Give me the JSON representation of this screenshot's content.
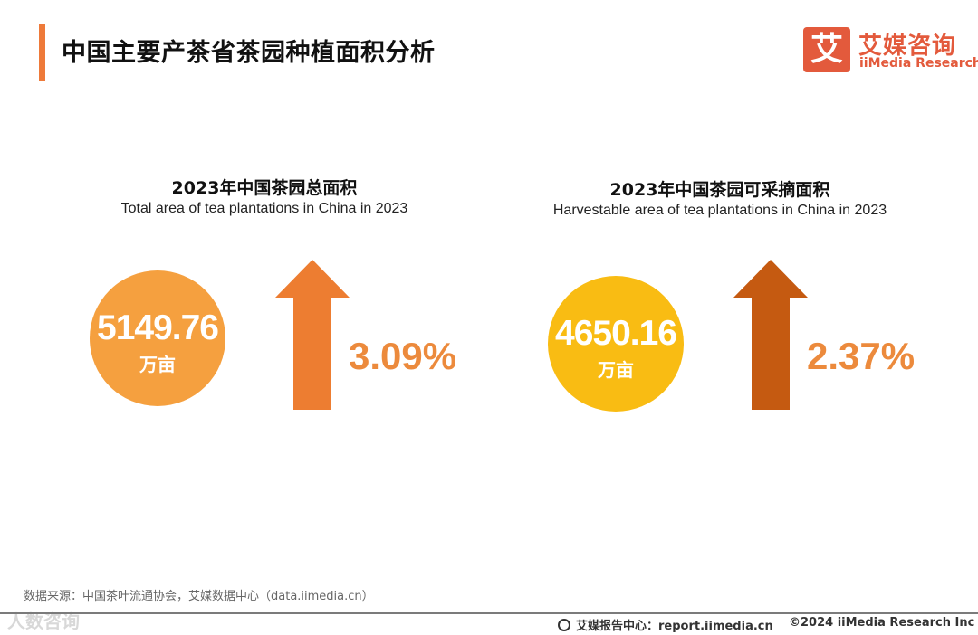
{
  "page": {
    "title": "中国主要产茶省茶园种植面积分析"
  },
  "brand": {
    "logo_char": "艾",
    "name_cn": "艾媒咨询",
    "name_en": "iiMedia Research",
    "accent_color": "#e35a3c"
  },
  "chart_data": [
    {
      "type": "table",
      "title": "2023年中国茶园总面积",
      "subtitle": "Total area of tea plantations in China in 2023",
      "value": "5149.76",
      "unit": "万亩",
      "growth": "3.09%",
      "circle_color": "#f5a03f",
      "arrow_color": "#ed7d31"
    },
    {
      "type": "table",
      "title": "2023年中国茶园可采摘面积",
      "subtitle": "Harvestable area of tea plantations in China in 2023",
      "value": "4650.16",
      "unit": "万亩",
      "growth": "2.37%",
      "circle_color": "#f9bc13",
      "arrow_color": "#c55a11"
    }
  ],
  "footer": {
    "source": "数据来源：中国茶叶流通协会，艾媒数据中心（data.iimedia.cn）",
    "report": "艾媒报告中心：report.iimedia.cn",
    "copyright": "©2024  iiMedia Research  Inc",
    "watermark": "人数咨询"
  }
}
